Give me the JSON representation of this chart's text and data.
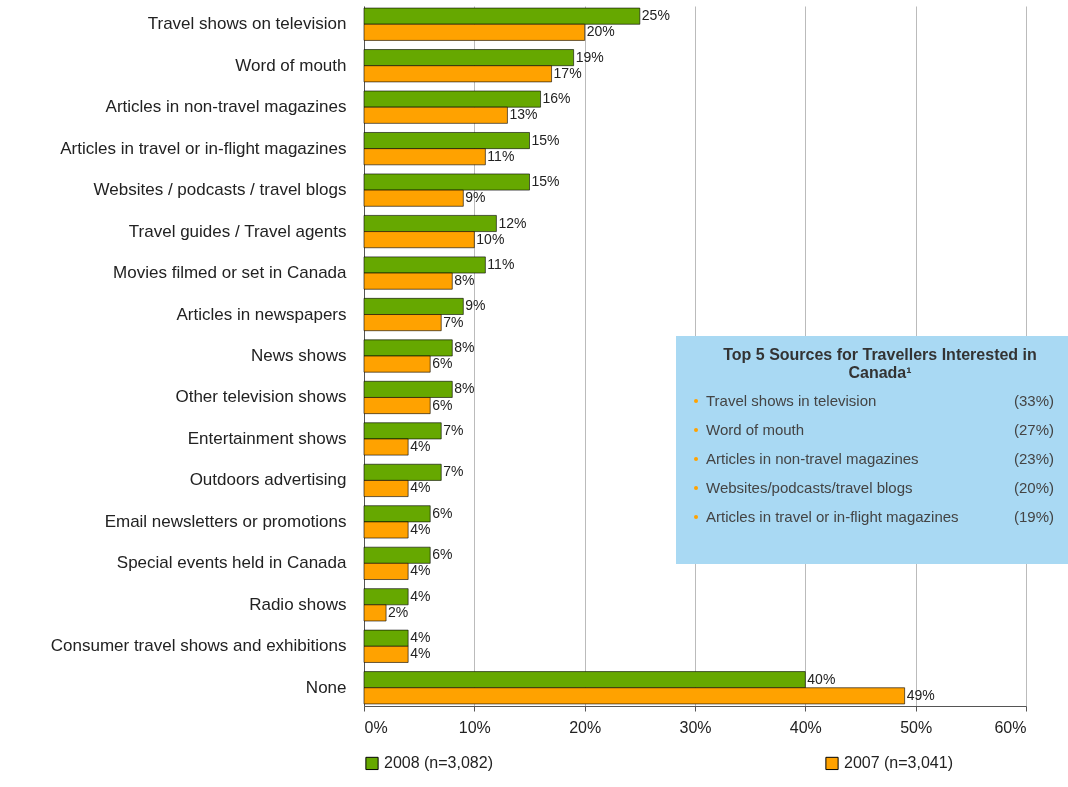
{
  "chart_data": {
    "type": "bar",
    "orientation": "horizontal",
    "categories": [
      "Travel shows on television",
      "Word of mouth",
      "Articles in non-travel magazines",
      "Articles in travel or in-flight magazines",
      "Websites / podcasts / travel blogs",
      "Travel guides / Travel agents",
      "Movies filmed or set in Canada",
      "Articles in newspapers",
      "News shows",
      "Other television shows",
      "Entertainment shows",
      "Outdoors advertising",
      "Email newsletters or promotions",
      "Special events held in Canada",
      "Radio shows",
      "Consumer travel shows and exhibitions",
      "None"
    ],
    "series": [
      {
        "name": "2008 (n=3,082)",
        "color": "#66a800",
        "values": [
          25,
          19,
          16,
          15,
          15,
          12,
          11,
          9,
          8,
          8,
          7,
          7,
          6,
          6,
          4,
          4,
          40
        ],
        "value_labels": [
          "25%",
          "19%",
          "16%",
          "15%",
          "15%",
          "12%",
          "11%",
          "9%",
          "8%",
          "8%",
          "7%",
          "7%",
          "6%",
          "6%",
          "4%",
          "4%",
          "40%"
        ]
      },
      {
        "name": "2007 (n=3,041)",
        "color": "#ffa200",
        "values": [
          20,
          17,
          13,
          11,
          9,
          10,
          8,
          7,
          6,
          6,
          4,
          4,
          4,
          4,
          2,
          4,
          49
        ],
        "value_labels": [
          "20%",
          "17%",
          "13%",
          "11%",
          "9%",
          "10%",
          "8%",
          "7%",
          "6%",
          "6%",
          "4%",
          "4%",
          "4%",
          "4%",
          "2%",
          "4%",
          "49%"
        ]
      }
    ],
    "xlim": [
      0,
      60
    ],
    "xticks": [
      {
        "value": 0,
        "label": "0%"
      },
      {
        "value": 10,
        "label": "10%"
      },
      {
        "value": 20,
        "label": "20%"
      },
      {
        "value": 30,
        "label": "30%"
      },
      {
        "value": 40,
        "label": "40%"
      },
      {
        "value": 50,
        "label": "50%"
      },
      {
        "value": 60,
        "label": "60%"
      }
    ],
    "grid": "x",
    "legend": "bottom",
    "annotations": [
      "Top 5 Sources for Travellers Interested in Canada¹",
      "Travel shows in television (33%)",
      "Word of mouth (27%)",
      "Articles in non-travel magazines (23%)",
      "Websites/podcasts/travel blogs (20%)",
      "Articles in travel or in-flight magazines (19%)"
    ]
  }
}
